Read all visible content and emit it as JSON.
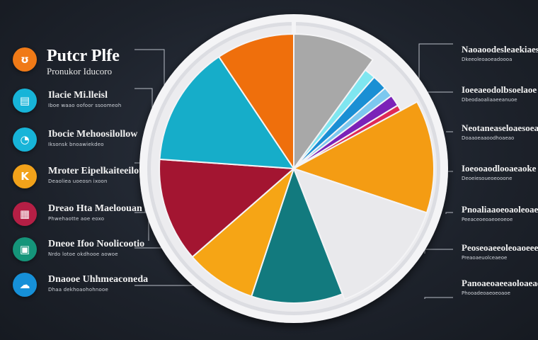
{
  "chart_data": {
    "type": "pie",
    "title": "Putcr Plfe",
    "subtitle": "Pronukor Iducoro",
    "slices": [
      {
        "value": 10.0,
        "color": "#a8a8a8"
      },
      {
        "value": 1.5,
        "color": "#7fe6f0"
      },
      {
        "value": 2.0,
        "color": "#1a8fd4"
      },
      {
        "value": 1.3,
        "color": "#7cc8ef"
      },
      {
        "value": 1.5,
        "color": "#7b22b8"
      },
      {
        "value": 0.8,
        "color": "#e02a56"
      },
      {
        "value": 13.0,
        "color": "#f49c13"
      },
      {
        "value": 14.0,
        "color": "#e9e9ec"
      },
      {
        "value": 11.0,
        "color": "#127a7e"
      },
      {
        "value": 8.5,
        "color": "#f6a515"
      },
      {
        "value": 12.5,
        "color": "#a31531"
      },
      {
        "value": 14.5,
        "color": "#16adc9"
      },
      {
        "value": 9.4,
        "color": "#ef6f0c"
      }
    ]
  },
  "left_items": [
    {
      "icon": "flame-icon",
      "glyph": "ʊ",
      "color": "#f07a17",
      "title": "",
      "sub": ""
    },
    {
      "icon": "document-icon",
      "glyph": "▤",
      "color": "#17b4d8",
      "title": "Ilacie Mi.lleisl",
      "sub": "Iboe waao oofoor  ssoomeoh"
    },
    {
      "icon": "chat-icon",
      "glyph": "◔",
      "color": "#17b4d8",
      "title": "Ibocie Mehoosilollow",
      "sub": "Iksonsk bnoawiekdeo"
    },
    {
      "icon": "letter-k-icon",
      "glyph": "K",
      "color": "#f2a21a",
      "title": "Mroter Eipelkaiteeilot",
      "sub": "Deaoliea uoeosn ixoon"
    },
    {
      "icon": "picture-icon",
      "glyph": "▦",
      "color": "#b51f45",
      "title": "Dreao Hta Maeloouan",
      "sub": "Phwehaotte aoe eoxo"
    },
    {
      "icon": "monitor-icon",
      "glyph": "▣",
      "color": "#15957a",
      "title": "Dneoe Ifoo Noolicootio",
      "sub": "Nrdo lotoe okdhooe  aowoe"
    },
    {
      "icon": "cloud-icon",
      "glyph": "☁",
      "color": "#1690d8",
      "title": "Dnaooe Uhhmeaconeda",
      "sub": "Dhaa dekhoaohohnooe"
    }
  ],
  "right_items": [
    {
      "title": "Naoaoodesleaekiaes",
      "sub": "Dkeeoleoaoeadoooa"
    },
    {
      "title": "Ioeeaeodolbsoelaoe",
      "sub": "Dbeodaoaliaaeeanuoe"
    },
    {
      "title": "Neotaneaseloaesoeas",
      "sub": "Doaaoeaaoodhoaeao"
    },
    {
      "title": "Ioeooaodlooaeaoke",
      "sub": "Deoeiesoueoeooone"
    },
    {
      "title": "Pnoaliaaoeoaoleoae",
      "sub": "Peeaceoeoaeoeoeoe"
    },
    {
      "title": "Peoseoaeeoleoaoeee",
      "sub": "Preaoaeuolceaeoe"
    },
    {
      "title": "Panoaeoaeeaoloaeae",
      "sub": "Phooadeoaeoeoaoe"
    }
  ]
}
